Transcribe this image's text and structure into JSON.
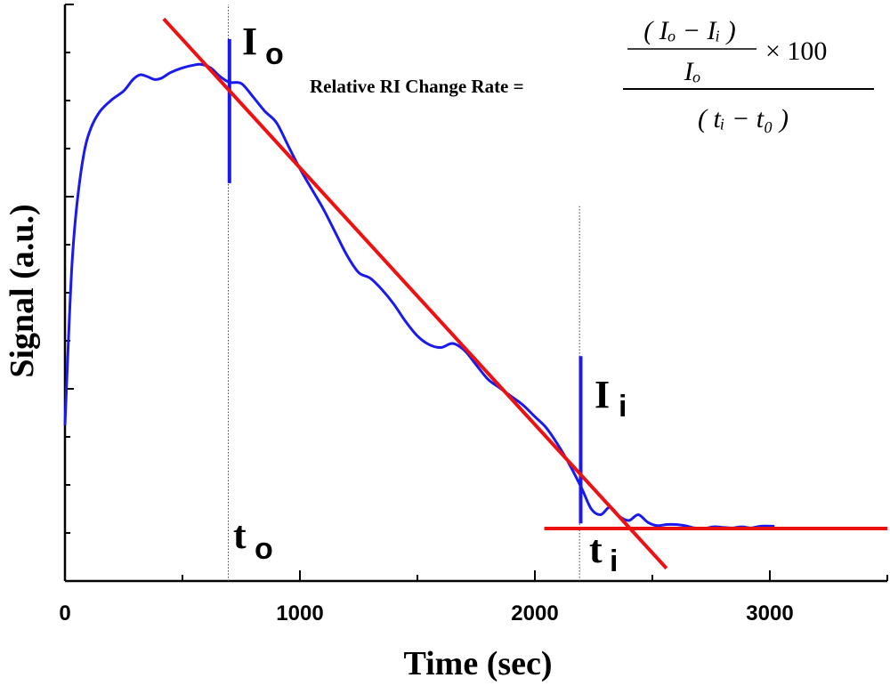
{
  "chart_data": {
    "type": "line",
    "title": "",
    "xlabel": "Time (sec)",
    "ylabel": "Signal (a.u.)",
    "xlim": [
      0,
      3500
    ],
    "ylim": [
      0,
      100
    ],
    "x_ticks": [
      0,
      1000,
      2000,
      3000
    ],
    "x_tick_labels": [
      "0",
      "1000",
      "2000",
      "3000"
    ],
    "y_tick_labels_shown": false,
    "series": [
      {
        "name": "Signal",
        "color": "#1a1aee",
        "points": [
          [
            0,
            27
          ],
          [
            15,
            42
          ],
          [
            30,
            55
          ],
          [
            50,
            65
          ],
          [
            80,
            74
          ],
          [
            110,
            78.5
          ],
          [
            150,
            81.5
          ],
          [
            200,
            83.5
          ],
          [
            250,
            85
          ],
          [
            290,
            87
          ],
          [
            320,
            87.8
          ],
          [
            350,
            87.5
          ],
          [
            380,
            87
          ],
          [
            410,
            87.2
          ],
          [
            450,
            88.2
          ],
          [
            500,
            89
          ],
          [
            550,
            89.5
          ],
          [
            580,
            89.6
          ],
          [
            620,
            89
          ],
          [
            660,
            87.5
          ],
          [
            700,
            86.5
          ],
          [
            750,
            86.3
          ],
          [
            800,
            84
          ],
          [
            850,
            81.5
          ],
          [
            900,
            79.5
          ],
          [
            950,
            75.5
          ],
          [
            1000,
            71.5
          ],
          [
            1050,
            68
          ],
          [
            1100,
            64.5
          ],
          [
            1150,
            60.5
          ],
          [
            1200,
            56.5
          ],
          [
            1250,
            53.5
          ],
          [
            1300,
            52.5
          ],
          [
            1350,
            50.5
          ],
          [
            1400,
            48
          ],
          [
            1450,
            45
          ],
          [
            1500,
            42.5
          ],
          [
            1550,
            41
          ],
          [
            1600,
            40.5
          ],
          [
            1650,
            41.2
          ],
          [
            1700,
            40
          ],
          [
            1750,
            37.5
          ],
          [
            1800,
            35
          ],
          [
            1850,
            33.5
          ],
          [
            1900,
            32
          ],
          [
            1950,
            30.5
          ],
          [
            2000,
            28.5
          ],
          [
            2050,
            26.5
          ],
          [
            2100,
            23.5
          ],
          [
            2150,
            20
          ],
          [
            2200,
            16
          ],
          [
            2240,
            12.5
          ],
          [
            2280,
            11.5
          ],
          [
            2320,
            12.8
          ],
          [
            2360,
            11.2
          ],
          [
            2400,
            10.5
          ],
          [
            2440,
            11.5
          ],
          [
            2480,
            10.2
          ],
          [
            2520,
            9.6
          ],
          [
            2560,
            9.8
          ],
          [
            2600,
            9.8
          ],
          [
            2640,
            9.6
          ],
          [
            2680,
            9.2
          ],
          [
            2720,
            9.1
          ],
          [
            2760,
            9.4
          ],
          [
            2800,
            9.3
          ],
          [
            2840,
            9.2
          ],
          [
            2880,
            9.4
          ],
          [
            2920,
            9.2
          ],
          [
            2960,
            9.5
          ],
          [
            3020,
            9.5
          ]
        ]
      },
      {
        "name": "Linear fit (decay)",
        "color": "#ee1111",
        "points": [
          [
            420,
            97.5
          ],
          [
            2560,
            2.2
          ]
        ]
      },
      {
        "name": "Baseline",
        "color": "#ee1111",
        "points": [
          [
            2040,
            9.1
          ],
          [
            3500,
            9.1
          ]
        ]
      }
    ],
    "reference_lines": [
      {
        "name": "t0 guide",
        "x": 695,
        "y_range": [
          0,
          100
        ],
        "style": "dotted"
      },
      {
        "name": "ti guide",
        "x": 2190,
        "y_range": [
          0,
          65
        ],
        "style": "dotted"
      },
      {
        "name": "I0 marker",
        "x": 700,
        "y_range": [
          69,
          94
        ],
        "color": "#1a1aee"
      },
      {
        "name": "Ii marker",
        "x": 2195,
        "y_range": [
          10,
          39
        ],
        "color": "#1a1aee"
      }
    ],
    "annotations": {
      "I0": {
        "main": "I",
        "sub": "o"
      },
      "Ii": {
        "main": "I",
        "sub": "i"
      },
      "t0": {
        "main": "t",
        "sub": "o"
      },
      "ti": {
        "main": "t",
        "sub": "i"
      }
    },
    "formula": {
      "label": "Relative RI Change Rate =",
      "numerator_top": "( Iₒ − Iᵢ )",
      "numerator_bottom": "Iₒ",
      "times100": "× 100",
      "denominator": "( tᵢ − t₀ )"
    }
  }
}
